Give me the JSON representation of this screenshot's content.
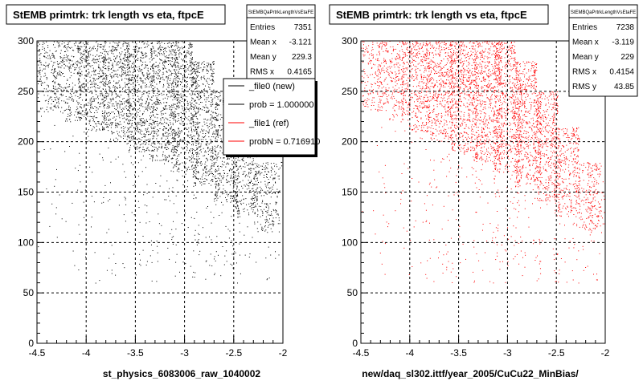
{
  "footer_text": "",
  "chart_data": [
    {
      "type": "scatter",
      "title": "StEMB primtrk: trk length vs eta, ftpcE",
      "xlabel": "st_physics_6083006_raw_1040002",
      "ylabel": "",
      "xlim": [
        -4.5,
        -2
      ],
      "ylim": [
        0,
        300
      ],
      "x_ticks": [
        -4.5,
        -4,
        -3.5,
        -3,
        -2.5,
        -2
      ],
      "x_tick_labels": [
        "-4.5",
        "-4",
        "-3.5",
        "-3",
        "-2.5",
        "-2"
      ],
      "y_ticks": [
        0,
        50,
        100,
        150,
        200,
        250,
        300
      ],
      "y_tick_labels": [
        "0",
        "50",
        "100",
        "150",
        "200",
        "250",
        "300"
      ],
      "grid": true,
      "marker_color": "#000000",
      "stats": {
        "name": "StEMBQaPrtrkLengthVsEtaFE",
        "rows": [
          {
            "label": "Entries",
            "value": "7351"
          },
          {
            "label": "Mean x",
            "value": "-3.121"
          },
          {
            "label": "Mean y",
            "value": "229.3"
          },
          {
            "label": "RMS x",
            "value": "0.4165"
          },
          {
            "label": "RMS y",
            "value": "43.2"
          }
        ]
      },
      "legend": {
        "placement": "top-right",
        "entries": [
          {
            "label": "_file0 (new)",
            "color": "#000000"
          },
          {
            "label": "prob = 1.000000",
            "color": "#000000"
          },
          {
            "label": "_file1 (ref)",
            "color": "#ff0000"
          },
          {
            "label": "probN = 0.716910",
            "color": "#ff0000"
          }
        ]
      },
      "density_profile": {
        "eta_bins": [
          -4.45,
          -4.2,
          -3.95,
          -3.7,
          -3.45,
          -3.2,
          -3.0,
          -2.8,
          -2.6,
          -2.4,
          -2.2,
          -2.05
        ],
        "y_low": [
          230,
          220,
          210,
          200,
          190,
          180,
          170,
          155,
          140,
          125,
          110,
          105
        ],
        "y_high": [
          300,
          300,
          300,
          300,
          300,
          300,
          300,
          280,
          250,
          215,
          180,
          150
        ],
        "relative_density": [
          0.35,
          0.5,
          0.7,
          0.9,
          1.0,
          1.0,
          0.95,
          0.85,
          0.7,
          0.5,
          0.3,
          0.15
        ]
      }
    },
    {
      "type": "scatter",
      "title": "StEMB primtrk: trk length vs eta, ftpcE",
      "xlabel": "new/daq_sl302.ittf/year_2005/CuCu22_MinBias/",
      "ylabel": "",
      "xlim": [
        -4.5,
        -2
      ],
      "ylim": [
        0,
        300
      ],
      "x_ticks": [
        -4.5,
        -4,
        -3.5,
        -3,
        -2.5,
        -2
      ],
      "x_tick_labels": [
        "-4.5",
        "-4",
        "-3.5",
        "-3",
        "-2.5",
        "-2"
      ],
      "y_ticks": [
        0,
        50,
        100,
        150,
        200,
        250,
        300
      ],
      "y_tick_labels": [
        "0",
        "50",
        "100",
        "150",
        "200",
        "250",
        "300"
      ],
      "grid": true,
      "marker_color": "#ff0000",
      "stats": {
        "name": "StEMBQaPrtrkLengthVsEtaFE",
        "rows": [
          {
            "label": "Entries",
            "value": "7238"
          },
          {
            "label": "Mean x",
            "value": "-3.119"
          },
          {
            "label": "Mean y",
            "value": "229"
          },
          {
            "label": "RMS x",
            "value": "0.4154"
          },
          {
            "label": "RMS y",
            "value": "43.85"
          }
        ]
      },
      "density_profile": {
        "eta_bins": [
          -4.45,
          -4.2,
          -3.95,
          -3.7,
          -3.45,
          -3.2,
          -3.0,
          -2.8,
          -2.6,
          -2.4,
          -2.2,
          -2.05
        ],
        "y_low": [
          230,
          220,
          210,
          200,
          190,
          180,
          170,
          155,
          140,
          125,
          110,
          105
        ],
        "y_high": [
          300,
          300,
          300,
          300,
          300,
          300,
          300,
          280,
          250,
          215,
          180,
          150
        ],
        "relative_density": [
          0.3,
          0.45,
          0.65,
          0.85,
          1.0,
          1.0,
          0.95,
          0.85,
          0.7,
          0.5,
          0.3,
          0.15
        ]
      }
    }
  ]
}
